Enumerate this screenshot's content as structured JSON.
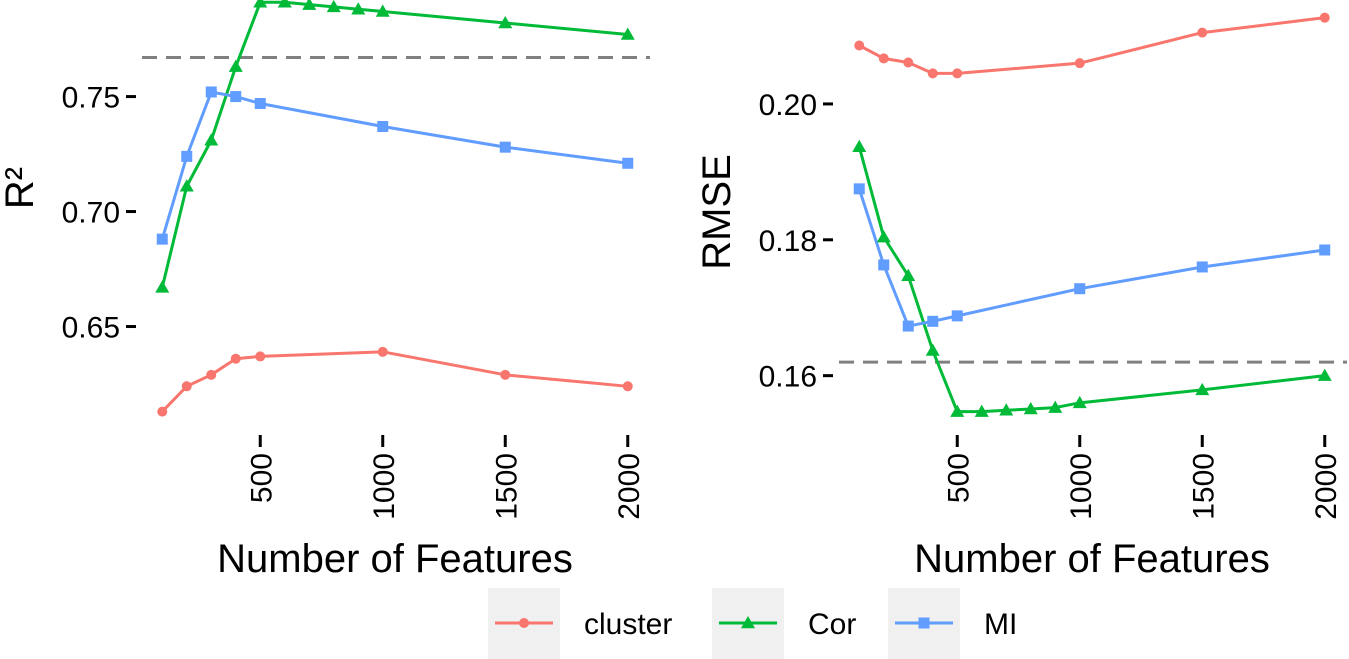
{
  "chart_data": [
    {
      "type": "line",
      "ylabel": "R²",
      "xlabel": "Number of Features",
      "x_ticks": [
        500,
        1000,
        1500,
        2000
      ],
      "y_ticks": [
        0.65,
        0.7,
        0.75
      ],
      "xlim": [
        50,
        2050
      ],
      "ylim": [
        0.605,
        0.792
      ],
      "reference_line": 0.767,
      "series": [
        {
          "name": "cluster",
          "x": [
            100,
            200,
            300,
            400,
            500,
            1000,
            1500,
            2000
          ],
          "y": [
            0.613,
            0.624,
            0.629,
            0.636,
            0.637,
            0.639,
            0.629,
            0.624
          ]
        },
        {
          "name": "Cor",
          "x": [
            100,
            200,
            300,
            400,
            500,
            600,
            700,
            800,
            900,
            1000,
            1500,
            2000
          ],
          "y": [
            0.667,
            0.711,
            0.731,
            0.763,
            0.791,
            0.791,
            0.79,
            0.789,
            0.788,
            0.787,
            0.782,
            0.777
          ]
        },
        {
          "name": "MI",
          "x": [
            100,
            200,
            300,
            400,
            500,
            1000,
            1500,
            2000
          ],
          "y": [
            0.688,
            0.724,
            0.752,
            0.75,
            0.747,
            0.737,
            0.728,
            0.721
          ]
        }
      ]
    },
    {
      "type": "line",
      "ylabel": "RMSE",
      "xlabel": "Number of Features",
      "x_ticks": [
        500,
        1000,
        1500,
        2000
      ],
      "y_ticks": [
        0.16,
        0.18,
        0.2
      ],
      "xlim": [
        50,
        2050
      ],
      "ylim": [
        0.152,
        0.2153
      ],
      "reference_line": 0.162,
      "series": [
        {
          "name": "cluster",
          "x": [
            100,
            200,
            300,
            400,
            500,
            1000,
            1500,
            2000
          ],
          "y": [
            0.2086,
            0.2067,
            0.2061,
            0.2045,
            0.2045,
            0.206,
            0.2105,
            0.2127
          ]
        },
        {
          "name": "Cor",
          "x": [
            100,
            200,
            300,
            400,
            500,
            600,
            700,
            800,
            900,
            1000,
            1500,
            2000
          ],
          "y": [
            0.1937,
            0.1804,
            0.1747,
            0.1637,
            0.1547,
            0.1547,
            0.1549,
            0.1551,
            0.1553,
            0.156,
            0.1579,
            0.16
          ]
        },
        {
          "name": "MI",
          "x": [
            100,
            200,
            300,
            400,
            500,
            1000,
            1500,
            2000
          ],
          "y": [
            0.1875,
            0.1763,
            0.1673,
            0.168,
            0.1688,
            0.1728,
            0.176,
            0.1785
          ]
        }
      ]
    }
  ],
  "legend": {
    "position": "bottom",
    "items": [
      {
        "label": "cluster",
        "color": "#f8766d",
        "marker": "circle"
      },
      {
        "label": "Cor",
        "color": "#00ba38",
        "marker": "triangle"
      },
      {
        "label": "MI",
        "color": "#619cff",
        "marker": "square"
      }
    ]
  },
  "colors": {
    "cluster": "#f8766d",
    "Cor": "#00ba38",
    "MI": "#619cff",
    "reference_line": "#808080",
    "legend_key_background": "#f0f0f0"
  }
}
